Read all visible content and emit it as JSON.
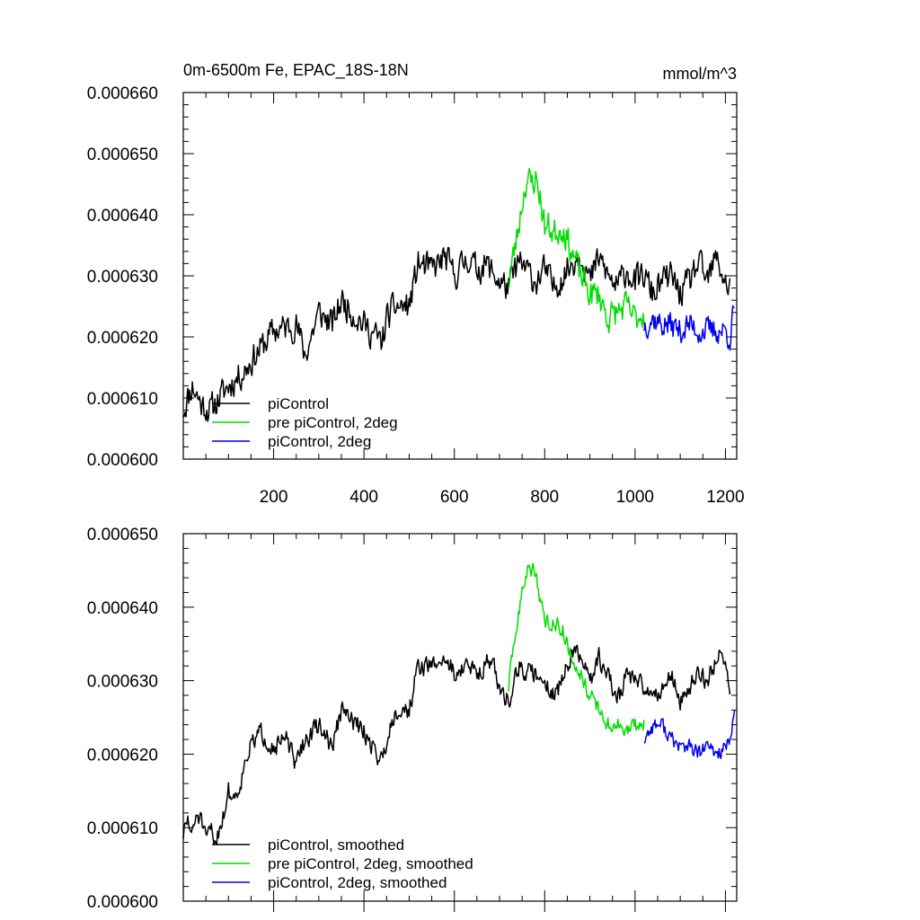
{
  "chart_data": [
    {
      "type": "line",
      "title": "0m-6500m Fe, EPAC_18S-18N",
      "units": "mmol/m^3",
      "xlim": [
        0,
        1225
      ],
      "ylim": [
        0.0006,
        0.00066
      ],
      "xticks": [
        200,
        400,
        600,
        800,
        1000,
        1200
      ],
      "xtick_labels": [
        "200",
        "400",
        "600",
        "800",
        "1000",
        "1200"
      ],
      "yticks": [
        0.0006,
        0.00061,
        0.00062,
        0.00063,
        0.00064,
        0.00065,
        0.00066
      ],
      "ytick_labels": [
        "0.000600",
        "0.000610",
        "0.000620",
        "0.000630",
        "0.000640",
        "0.000650",
        "0.000660"
      ],
      "legend": {
        "placement": "bottom-left"
      },
      "series": [
        {
          "name": "piControl",
          "color": "#000000",
          "noise": 2.2e-06,
          "seed": 11,
          "x": [
            0,
            20,
            40,
            60,
            80,
            100,
            130,
            150,
            200,
            250,
            270,
            300,
            330,
            350,
            400,
            440,
            450,
            470,
            500,
            520,
            550,
            580,
            600,
            630,
            650,
            670,
            700,
            720,
            740,
            760,
            780,
            800,
            820,
            840,
            860,
            880,
            900,
            920,
            940,
            960,
            980,
            1000,
            1020,
            1040,
            1060,
            1080,
            1100,
            1120,
            1140,
            1160,
            1180,
            1200,
            1210
          ],
          "values": [
            0.000608,
            0.000612,
            0.000609,
            0.000608,
            0.00061,
            0.000612,
            0.000614,
            0.000616,
            0.000621,
            0.000622,
            0.000617,
            0.000624,
            0.000622,
            0.000626,
            0.000622,
            0.000619,
            0.000623,
            0.000625,
            0.000625,
            0.000632,
            0.000631,
            0.000633,
            0.00063,
            0.000633,
            0.000631,
            0.000632,
            0.000629,
            0.000628,
            0.000632,
            0.000631,
            0.000629,
            0.000631,
            0.000628,
            0.00063,
            0.000632,
            0.000634,
            0.000629,
            0.000633,
            0.00063,
            0.000628,
            0.000631,
            0.000629,
            0.00063,
            0.000627,
            0.000629,
            0.00063,
            0.000627,
            0.000629,
            0.000632,
            0.000629,
            0.000633,
            0.000629,
            0.000628
          ]
        },
        {
          "name": "pre piControl, 2deg",
          "color": "#00dd00",
          "noise": 2.2e-06,
          "seed": 23,
          "x": [
            720,
            730,
            740,
            750,
            760,
            770,
            780,
            790,
            800,
            810,
            820,
            840,
            860,
            880,
            900,
            920,
            940,
            960,
            980,
            1000,
            1020
          ],
          "values": [
            0.000629,
            0.000633,
            0.000637,
            0.000642,
            0.000646,
            0.000645,
            0.000646,
            0.000643,
            0.000638,
            0.000638,
            0.000637,
            0.000638,
            0.000634,
            0.00063,
            0.000627,
            0.000627,
            0.000623,
            0.000624,
            0.000625,
            0.000623,
            0.000624
          ]
        },
        {
          "name": "piControl, 2deg",
          "color": "#0000ee",
          "noise": 2e-06,
          "seed": 37,
          "x": [
            1020,
            1040,
            1060,
            1080,
            1100,
            1120,
            1140,
            1160,
            1180,
            1200,
            1210,
            1220
          ],
          "values": [
            0.000622,
            0.000623,
            0.000622,
            0.000622,
            0.000621,
            0.000622,
            0.000621,
            0.000621,
            0.000621,
            0.000621,
            0.00062,
            0.000625
          ]
        }
      ]
    },
    {
      "type": "line",
      "title": "",
      "xlim": [
        0,
        1225
      ],
      "ylim": [
        0.0006,
        0.00065
      ],
      "xticks": [
        200,
        400,
        600,
        800,
        1000,
        1200
      ],
      "xtick_labels": [],
      "yticks": [
        0.0006,
        0.00061,
        0.00062,
        0.00063,
        0.00064,
        0.00065
      ],
      "ytick_labels": [
        "0.000600",
        "0.000610",
        "0.000620",
        "0.000630",
        "0.000640",
        "0.000650"
      ],
      "legend": {
        "placement": "bottom-left"
      },
      "series": [
        {
          "name": "piControl, smoothed",
          "color": "#000000",
          "noise": 1.2e-06,
          "seed": 51,
          "x": [
            0,
            10,
            20,
            30,
            40,
            50,
            60,
            70,
            80,
            90,
            100,
            110,
            120,
            130,
            140,
            150,
            170,
            200,
            230,
            250,
            260,
            300,
            330,
            350,
            400,
            440,
            450,
            470,
            500,
            520,
            550,
            580,
            600,
            630,
            650,
            680,
            700,
            720,
            740,
            760,
            780,
            800,
            820,
            840,
            860,
            880,
            900,
            920,
            940,
            960,
            980,
            1000,
            1020,
            1040,
            1060,
            1080,
            1100,
            1120,
            1140,
            1160,
            1180,
            1195,
            1210
          ],
          "values": [
            0.000609,
            0.000611,
            0.000609,
            0.000612,
            0.000611,
            0.000608,
            0.00061,
            0.000608,
            0.00061,
            0.000612,
            0.000615,
            0.000614,
            0.000615,
            0.000617,
            0.00062,
            0.000621,
            0.000623,
            0.000621,
            0.000622,
            0.000618,
            0.000621,
            0.000624,
            0.000621,
            0.000626,
            0.000623,
            0.000619,
            0.000622,
            0.000626,
            0.000626,
            0.000632,
            0.000632,
            0.000633,
            0.000631,
            0.000632,
            0.000631,
            0.000633,
            0.000629,
            0.000627,
            0.000632,
            0.000631,
            0.000631,
            0.00063,
            0.000628,
            0.00063,
            0.000634,
            0.000633,
            0.00063,
            0.000633,
            0.000631,
            0.000627,
            0.000631,
            0.00063,
            0.000629,
            0.000628,
            0.000629,
            0.000631,
            0.000627,
            0.000629,
            0.000631,
            0.00063,
            0.000633,
            0.000634,
            0.000628
          ]
        },
        {
          "name": "pre piControl, 2deg, smoothed",
          "color": "#00dd00",
          "noise": 1e-06,
          "seed": 63,
          "x": [
            720,
            730,
            740,
            750,
            760,
            770,
            780,
            790,
            800,
            810,
            820,
            840,
            860,
            880,
            900,
            920,
            940,
            960,
            980,
            1000,
            1020
          ],
          "values": [
            0.000629,
            0.000634,
            0.000638,
            0.000642,
            0.000645,
            0.000645,
            0.000645,
            0.000641,
            0.000638,
            0.000638,
            0.000638,
            0.000637,
            0.000633,
            0.000631,
            0.000628,
            0.000626,
            0.000624,
            0.000624,
            0.000623,
            0.000624,
            0.000624
          ]
        },
        {
          "name": "piControl, 2deg, smoothed",
          "color": "#0000ee",
          "noise": 1e-06,
          "seed": 77,
          "x": [
            1020,
            1040,
            1060,
            1080,
            1100,
            1120,
            1140,
            1160,
            1180,
            1200,
            1210,
            1220
          ],
          "values": [
            0.000622,
            0.000624,
            0.000624,
            0.000622,
            0.000621,
            0.000621,
            0.00062,
            0.000621,
            0.00062,
            0.000621,
            0.000621,
            0.000626
          ]
        }
      ]
    }
  ]
}
